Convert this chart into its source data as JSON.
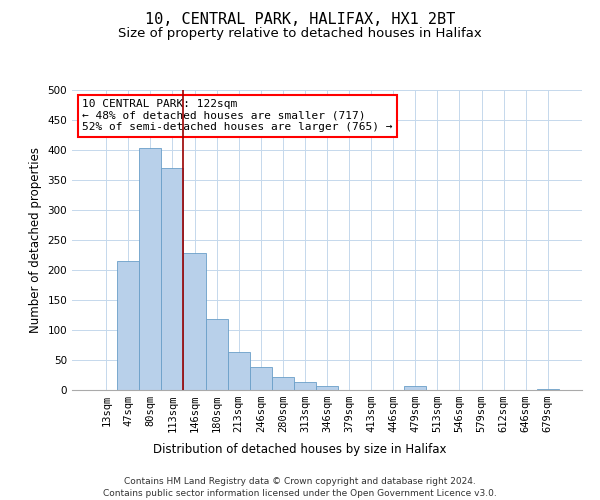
{
  "title": "10, CENTRAL PARK, HALIFAX, HX1 2BT",
  "subtitle": "Size of property relative to detached houses in Halifax",
  "xlabel": "Distribution of detached houses by size in Halifax",
  "ylabel": "Number of detached properties",
  "categories": [
    "13sqm",
    "47sqm",
    "80sqm",
    "113sqm",
    "146sqm",
    "180sqm",
    "213sqm",
    "246sqm",
    "280sqm",
    "313sqm",
    "346sqm",
    "379sqm",
    "413sqm",
    "446sqm",
    "479sqm",
    "513sqm",
    "546sqm",
    "579sqm",
    "612sqm",
    "646sqm",
    "679sqm"
  ],
  "values": [
    0,
    215,
    403,
    370,
    228,
    119,
    63,
    39,
    22,
    14,
    6,
    0,
    0,
    0,
    7,
    0,
    0,
    0,
    0,
    0,
    2
  ],
  "bar_color": "#b8d0ea",
  "bar_edge_color": "#6a9fc8",
  "bar_width": 1.0,
  "property_line_x": 3.5,
  "property_line_color": "#990000",
  "ylim": [
    0,
    500
  ],
  "yticks": [
    0,
    50,
    100,
    150,
    200,
    250,
    300,
    350,
    400,
    450,
    500
  ],
  "annotation_box_text": "10 CENTRAL PARK: 122sqm\n← 48% of detached houses are smaller (717)\n52% of semi-detached houses are larger (765) →",
  "footer_line1": "Contains HM Land Registry data © Crown copyright and database right 2024.",
  "footer_line2": "Contains public sector information licensed under the Open Government Licence v3.0.",
  "background_color": "#ffffff",
  "grid_color": "#c5d8ec",
  "title_fontsize": 11,
  "subtitle_fontsize": 9.5,
  "axis_label_fontsize": 8.5,
  "tick_fontsize": 7.5,
  "annotation_fontsize": 8,
  "footer_fontsize": 6.5
}
